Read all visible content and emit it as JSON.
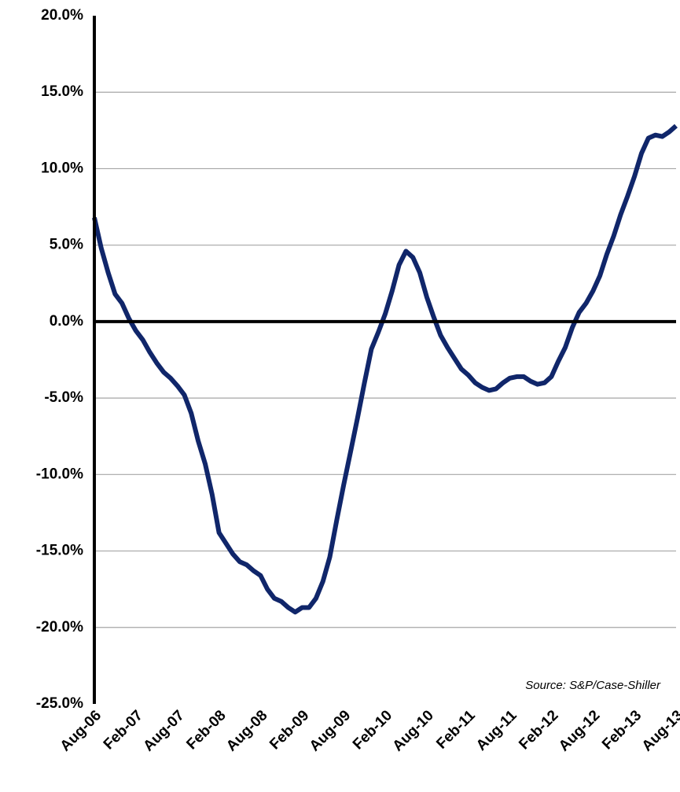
{
  "chart_data": {
    "type": "line",
    "annotation": "Source: S&P/Case-Shiller",
    "categories": [
      "Aug-06",
      null,
      null,
      null,
      null,
      null,
      "Feb-07",
      null,
      null,
      null,
      null,
      null,
      "Aug-07",
      null,
      null,
      null,
      null,
      null,
      "Feb-08",
      null,
      null,
      null,
      null,
      null,
      "Aug-08",
      null,
      null,
      null,
      null,
      null,
      "Feb-09",
      null,
      null,
      null,
      null,
      null,
      "Aug-09",
      null,
      null,
      null,
      null,
      null,
      "Feb-10",
      null,
      null,
      null,
      null,
      null,
      "Aug-10",
      null,
      null,
      null,
      null,
      null,
      "Feb-11",
      null,
      null,
      null,
      null,
      null,
      "Aug-11",
      null,
      null,
      null,
      null,
      null,
      "Feb-12",
      null,
      null,
      null,
      null,
      null,
      "Aug-12",
      null,
      null,
      null,
      null,
      null,
      "Feb-13",
      null,
      null,
      null,
      null,
      null,
      "Aug-13"
    ],
    "series": [
      {
        "color": "#10266a",
        "values": [
          6.8,
          4.8,
          3.2,
          1.8,
          1.2,
          0.2,
          -0.6,
          -1.2,
          -2.0,
          -2.7,
          -3.3,
          -3.7,
          -4.2,
          -4.8,
          -6.0,
          -7.8,
          -9.3,
          -11.3,
          -13.8,
          -14.5,
          -15.2,
          -15.7,
          -15.9,
          -16.3,
          -16.6,
          -17.5,
          -18.1,
          -18.3,
          -18.7,
          -19.0,
          -18.7,
          -18.7,
          -18.1,
          -17.0,
          -15.4,
          -13.0,
          -10.7,
          -8.5,
          -6.3,
          -4.0,
          -1.8,
          -0.7,
          0.5,
          2.0,
          3.7,
          4.6,
          4.2,
          3.2,
          1.6,
          0.3,
          -0.9,
          -1.7,
          -2.4,
          -3.1,
          -3.5,
          -4.0,
          -4.3,
          -4.5,
          -4.4,
          -4.0,
          -3.7,
          -3.6,
          -3.6,
          -3.9,
          -4.1,
          -4.0,
          -3.6,
          -2.6,
          -1.7,
          -0.4,
          0.6,
          1.2,
          2.0,
          3.0,
          4.4,
          5.6,
          7.0,
          8.2,
          9.5,
          11.0,
          12.0,
          12.2,
          12.1,
          12.4,
          12.8
        ]
      }
    ],
    "ylim": [
      -25,
      20
    ],
    "yticks": [
      {
        "value": -25,
        "label": "-25.0%"
      },
      {
        "value": -20,
        "label": "-20.0%"
      },
      {
        "value": -15,
        "label": "-15.0%"
      },
      {
        "value": -10,
        "label": "-10.0%"
      },
      {
        "value": -5,
        "label": "-5.0%"
      },
      {
        "value": 0,
        "label": "0.0%"
      },
      {
        "value": 5,
        "label": "5.0%"
      },
      {
        "value": 10,
        "label": "10.0%"
      },
      {
        "value": 15,
        "label": "15.0%"
      },
      {
        "value": 20,
        "label": "20.0%"
      }
    ],
    "grid": true
  }
}
